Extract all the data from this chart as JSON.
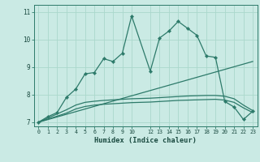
{
  "xlabel": "Humidex (Indice chaleur)",
  "bg_color": "#caeae4",
  "grid_color": "#aad8cc",
  "line_color": "#2d7a6a",
  "xlim": [
    -0.5,
    23.5
  ],
  "ylim": [
    6.85,
    11.25
  ],
  "yticks": [
    7,
    8,
    9,
    10,
    11
  ],
  "xticks": [
    0,
    1,
    2,
    3,
    4,
    5,
    6,
    7,
    8,
    9,
    10,
    12,
    13,
    14,
    15,
    16,
    17,
    18,
    19,
    20,
    21,
    22,
    23
  ],
  "series1_x": [
    0,
    1,
    2,
    3,
    4,
    5,
    6,
    7,
    8,
    9,
    10,
    12,
    13,
    14,
    15,
    16,
    17,
    18,
    19,
    20,
    21,
    22,
    23
  ],
  "series1_y": [
    7.0,
    7.2,
    7.35,
    7.9,
    8.2,
    8.75,
    8.8,
    9.3,
    9.2,
    9.5,
    10.85,
    8.85,
    10.05,
    10.3,
    10.65,
    10.4,
    10.15,
    9.4,
    9.35,
    7.75,
    7.55,
    7.1,
    7.4
  ],
  "series2_x": [
    0,
    23
  ],
  "series2_y": [
    7.0,
    9.2
  ],
  "series3_x": [
    0,
    2,
    3,
    4,
    5,
    6,
    7,
    8,
    9,
    10,
    12,
    13,
    14,
    15,
    16,
    17,
    18,
    19,
    20,
    21,
    22,
    23
  ],
  "series3_y": [
    7.0,
    7.3,
    7.45,
    7.62,
    7.72,
    7.76,
    7.79,
    7.81,
    7.83,
    7.85,
    7.87,
    7.89,
    7.91,
    7.93,
    7.95,
    7.96,
    7.97,
    7.97,
    7.94,
    7.85,
    7.62,
    7.42
  ],
  "series4_x": [
    0,
    2,
    3,
    4,
    5,
    6,
    7,
    8,
    9,
    10,
    12,
    13,
    14,
    15,
    16,
    17,
    18,
    19,
    20,
    21,
    22,
    23
  ],
  "series4_y": [
    7.0,
    7.22,
    7.33,
    7.48,
    7.57,
    7.62,
    7.65,
    7.67,
    7.69,
    7.71,
    7.73,
    7.75,
    7.77,
    7.79,
    7.8,
    7.81,
    7.82,
    7.83,
    7.8,
    7.72,
    7.52,
    7.35
  ]
}
